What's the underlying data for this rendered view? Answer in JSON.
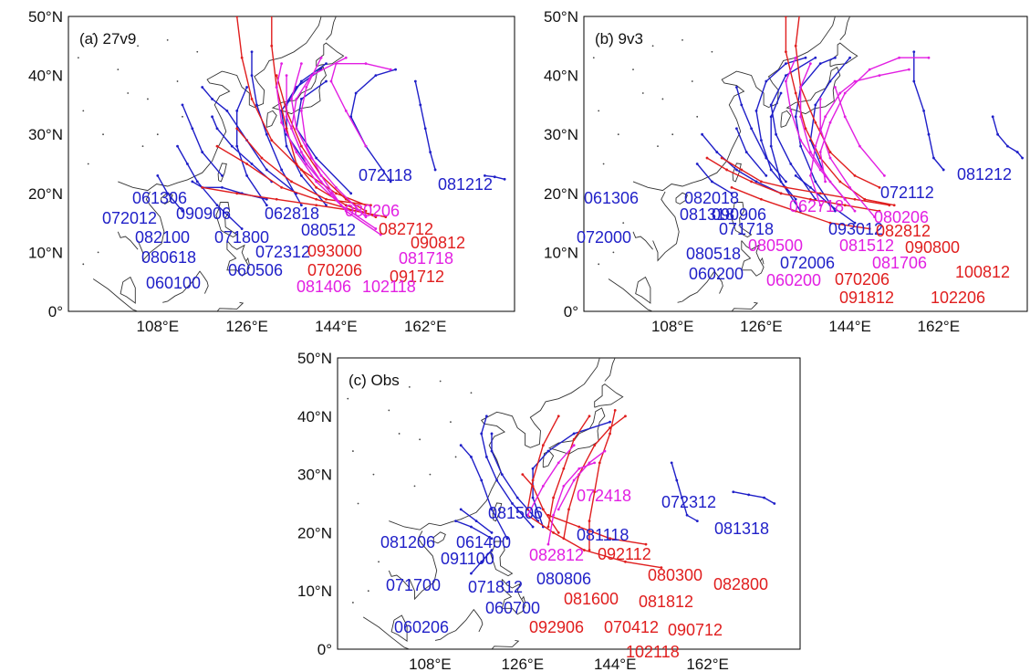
{
  "colors": {
    "blue": "#1f1fc8",
    "red": "#e01e1e",
    "magenta": "#e21fe2"
  },
  "panels": [
    {
      "title": "(a) 27v9",
      "y_ticks": [
        "50°N",
        "40°N",
        "30°N",
        "20°N",
        "10°N",
        "0°"
      ],
      "x_ticks": [
        "108°E",
        "126°E",
        "144°E",
        "162°E"
      ],
      "storm_labels": [
        {
          "text": "072118",
          "color": "blue"
        },
        {
          "text": "081212",
          "color": "blue"
        },
        {
          "text": "061306",
          "color": "blue"
        },
        {
          "text": "072012",
          "color": "blue"
        },
        {
          "text": "090906",
          "color": "blue"
        },
        {
          "text": "062818",
          "color": "blue"
        },
        {
          "text": "082100",
          "color": "blue"
        },
        {
          "text": "071800",
          "color": "blue"
        },
        {
          "text": "080512",
          "color": "blue"
        },
        {
          "text": "080618",
          "color": "blue"
        },
        {
          "text": "072312",
          "color": "blue"
        },
        {
          "text": "060506",
          "color": "blue"
        },
        {
          "text": "060100",
          "color": "blue"
        },
        {
          "text": "080206",
          "color": "magenta"
        },
        {
          "text": "082712",
          "color": "red"
        },
        {
          "text": "090812",
          "color": "red"
        },
        {
          "text": "093000",
          "color": "red"
        },
        {
          "text": "070206",
          "color": "red"
        },
        {
          "text": "081718",
          "color": "magenta"
        },
        {
          "text": "091712",
          "color": "red"
        },
        {
          "text": "081406",
          "color": "magenta"
        },
        {
          "text": "102118",
          "color": "magenta"
        }
      ]
    },
    {
      "title": "(b) 9v3",
      "y_ticks": [
        "50°N",
        "40°N",
        "30°N",
        "20°N",
        "10°N",
        "0°"
      ],
      "x_ticks": [
        "108°E",
        "126°E",
        "144°E",
        "162°E"
      ],
      "storm_labels": [
        {
          "text": "081212",
          "color": "blue"
        },
        {
          "text": "072112",
          "color": "blue"
        },
        {
          "text": "061306",
          "color": "blue"
        },
        {
          "text": "082018",
          "color": "blue"
        },
        {
          "text": "081318",
          "color": "blue"
        },
        {
          "text": "090906",
          "color": "blue"
        },
        {
          "text": "062718",
          "color": "magenta"
        },
        {
          "text": "080206",
          "color": "magenta"
        },
        {
          "text": "071718",
          "color": "blue"
        },
        {
          "text": "093012",
          "color": "blue"
        },
        {
          "text": "082812",
          "color": "red"
        },
        {
          "text": "072000",
          "color": "blue"
        },
        {
          "text": "080500",
          "color": "magenta"
        },
        {
          "text": "081512",
          "color": "magenta"
        },
        {
          "text": "090800",
          "color": "red"
        },
        {
          "text": "080518",
          "color": "blue"
        },
        {
          "text": "072006",
          "color": "blue"
        },
        {
          "text": "081706",
          "color": "magenta"
        },
        {
          "text": "100812",
          "color": "red"
        },
        {
          "text": "060200",
          "color": "blue"
        },
        {
          "text": "060200",
          "color": "magenta"
        },
        {
          "text": "070206",
          "color": "red"
        },
        {
          "text": "091812",
          "color": "red"
        },
        {
          "text": "102206",
          "color": "red"
        }
      ]
    },
    {
      "title": "(c) Obs",
      "y_ticks": [
        "50°N",
        "40°N",
        "30°N",
        "20°N",
        "10°N",
        "0°"
      ],
      "x_ticks": [
        "108°E",
        "126°E",
        "144°E",
        "162°E"
      ],
      "storm_labels": [
        {
          "text": "072418",
          "color": "magenta"
        },
        {
          "text": "072312",
          "color": "blue"
        },
        {
          "text": "081506",
          "color": "blue"
        },
        {
          "text": "081318",
          "color": "blue"
        },
        {
          "text": "081118",
          "color": "blue"
        },
        {
          "text": "081206",
          "color": "blue"
        },
        {
          "text": "061400",
          "color": "blue"
        },
        {
          "text": "091100",
          "color": "blue"
        },
        {
          "text": "082812",
          "color": "magenta"
        },
        {
          "text": "092112",
          "color": "red"
        },
        {
          "text": "080300",
          "color": "red"
        },
        {
          "text": "071700",
          "color": "blue"
        },
        {
          "text": "071812",
          "color": "blue"
        },
        {
          "text": "080806",
          "color": "blue"
        },
        {
          "text": "082800",
          "color": "red"
        },
        {
          "text": "060700",
          "color": "blue"
        },
        {
          "text": "081600",
          "color": "red"
        },
        {
          "text": "081812",
          "color": "red"
        },
        {
          "text": "060206",
          "color": "blue"
        },
        {
          "text": "092906",
          "color": "red"
        },
        {
          "text": "070412",
          "color": "red"
        },
        {
          "text": "090712",
          "color": "red"
        },
        {
          "text": "102118",
          "color": "red"
        }
      ]
    }
  ]
}
